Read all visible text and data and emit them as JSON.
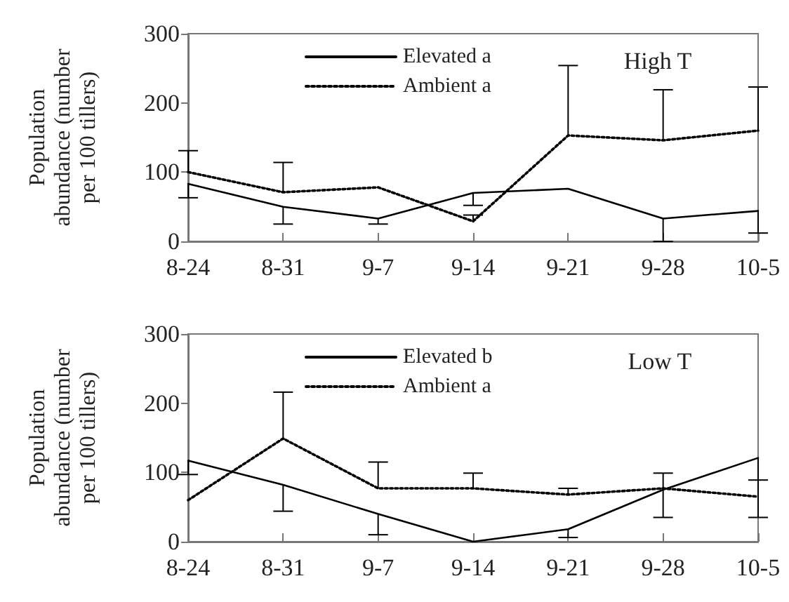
{
  "chart_data": [
    {
      "type": "line",
      "title": "High T",
      "ylabel": "Population abundance (number per 100 tillers)",
      "categories": [
        "8-24",
        "8-31",
        "9-7",
        "9-14",
        "9-21",
        "9-28",
        "10-5"
      ],
      "ylim": [
        0,
        300
      ],
      "yticks": [
        0,
        100,
        200,
        300
      ],
      "grid": false,
      "legend": "top",
      "marker": "none",
      "series": [
        {
          "name": "Elevated a",
          "color": "#000000",
          "line_style": "solid",
          "values": [
            83,
            50,
            33,
            70,
            76,
            33,
            44
          ],
          "errors": [
            [
              63,
              83
            ],
            [
              25,
              50
            ],
            [
              25,
              33
            ],
            [
              52,
              70
            ],
            null,
            [
              0,
              33
            ],
            [
              12,
              44
            ]
          ]
        },
        {
          "name": "Ambient a",
          "color": "#000000",
          "line_style": "dotted",
          "values": [
            100,
            71,
            78,
            29,
            153,
            146,
            160
          ],
          "errors": [
            [
              100,
              131
            ],
            [
              71,
              114
            ],
            null,
            [
              29,
              38
            ],
            [
              153,
              254
            ],
            [
              146,
              219
            ],
            [
              160,
              223
            ]
          ]
        }
      ]
    },
    {
      "type": "line",
      "title": "Low T",
      "ylabel": "Population abundance (number per 100 tillers)",
      "categories": [
        "8-24",
        "8-31",
        "9-7",
        "9-14",
        "9-21",
        "9-28",
        "10-5"
      ],
      "ylim": [
        0,
        300
      ],
      "yticks": [
        0,
        100,
        200,
        300
      ],
      "grid": false,
      "legend": "top",
      "marker": "none",
      "series": [
        {
          "name": "Elevated b",
          "color": "#000000",
          "line_style": "solid",
          "values": [
            117,
            82,
            40,
            0,
            18,
            75,
            121
          ],
          "errors": [
            [
              97,
              117
            ],
            [
              44,
              82
            ],
            [
              10,
              40
            ],
            null,
            [
              6,
              18
            ],
            [
              35,
              75
            ],
            [
              35,
              121
            ]
          ]
        },
        {
          "name": "Ambient a",
          "color": "#000000",
          "line_style": "dotted",
          "values": [
            60,
            149,
            77,
            77,
            68,
            77,
            65
          ],
          "errors": [
            null,
            [
              149,
              216
            ],
            [
              77,
              115
            ],
            [
              77,
              99
            ],
            [
              68,
              77
            ],
            [
              77,
              99
            ],
            [
              65,
              89
            ]
          ]
        }
      ]
    }
  ]
}
